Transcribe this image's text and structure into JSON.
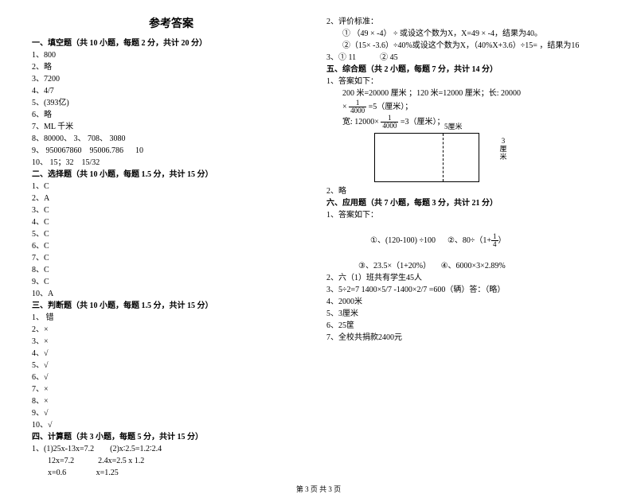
{
  "title": "参考答案",
  "footer": "第 3 页 共 3 页",
  "left": {
    "s1": {
      "head": "一、填空题（共 10 小题，每题 2 分，共计 20 分）",
      "items": [
        "1、800",
        "2、略",
        "3、7200",
        "4、4/7",
        "5、(393亿)",
        "6、略",
        "7、ML   千米",
        "8、80000、 3、 708、 3080",
        "9、 950067860    95006.786      10",
        "10、 15；32    15/32"
      ]
    },
    "s2": {
      "head": "二、选择题（共 10 小题，每题 1.5 分，共计 15 分）",
      "items": [
        "1、C",
        "2、A",
        "3、C",
        "4、C",
        "5、C",
        "6、C",
        "7、C",
        "8、C",
        "9、C",
        "10、A"
      ]
    },
    "s3": {
      "head": "三、判断题（共 10 小题，每题 1.5 分，共计 15 分）",
      "items": [
        "1、 错",
        "2、×",
        "3、×",
        "4、√",
        "5、√",
        "6、√",
        "7、×",
        "8、×",
        "9、√",
        "10、√"
      ]
    },
    "s4": {
      "head": "四、计算题（共 3 小题，每题 5 分，共计 15 分）",
      "l1": "1、(1)25x-13x=7.2        (2)x∶2.5=1.2∶2.4",
      "l2": "12x=7.2            2.4x=2.5 x 1.2",
      "l3": "x=0.6               x=1.25"
    }
  },
  "right": {
    "t1": "2、评价标准：",
    "t2": "① （49 ×  -4） ÷ 或设这个数为X，X=49 × -4，结果为40。",
    "t3": "②（15× -3.6）÷40%或设这个数为X，（40%X+3.6）÷15= ，结果为16",
    "t4": "3、① 11            ② 45",
    "s5": {
      "head": "五、综合题（共 2 小题，每题 7 分，共计 14 分）",
      "l1": "1、答案如下：",
      "l2": "200 米=20000 厘米 ；120 米=12000 厘米；长: 20000",
      "l3a": "×",
      "frac1_n": "1",
      "frac1_d": "4000",
      "l3b": "=5（厘米）；",
      "l4a": "宽: 12000×",
      "frac2_n": "1",
      "frac2_d": "4000",
      "l4b": "=3（厘米）；",
      "dlabel_top": "5厘米",
      "dlabel_right": "3\n厘\n米",
      "l5": "2、略"
    },
    "s6": {
      "head": "六、应用题（共 7 小题，每题 3 分，共计 21 分）",
      "l1": "1、答案如下：",
      "l2a": "①、(120-100) ÷100      ②、80÷（1+",
      "frac3_n": "1",
      "frac3_d": "4",
      "l2b": "）",
      "l3": "③、23.5×（1+20%）     ④、6000×3×2.89%",
      "items": [
        "2、六（1）班共有学生45人",
        "3、5÷2=7 1400×5/7 -1400×2/7 =600（辆）答：（略）",
        "4、2000米",
        "5、3厘米",
        "6、25筐",
        "7、全校共捐款2400元"
      ]
    }
  }
}
